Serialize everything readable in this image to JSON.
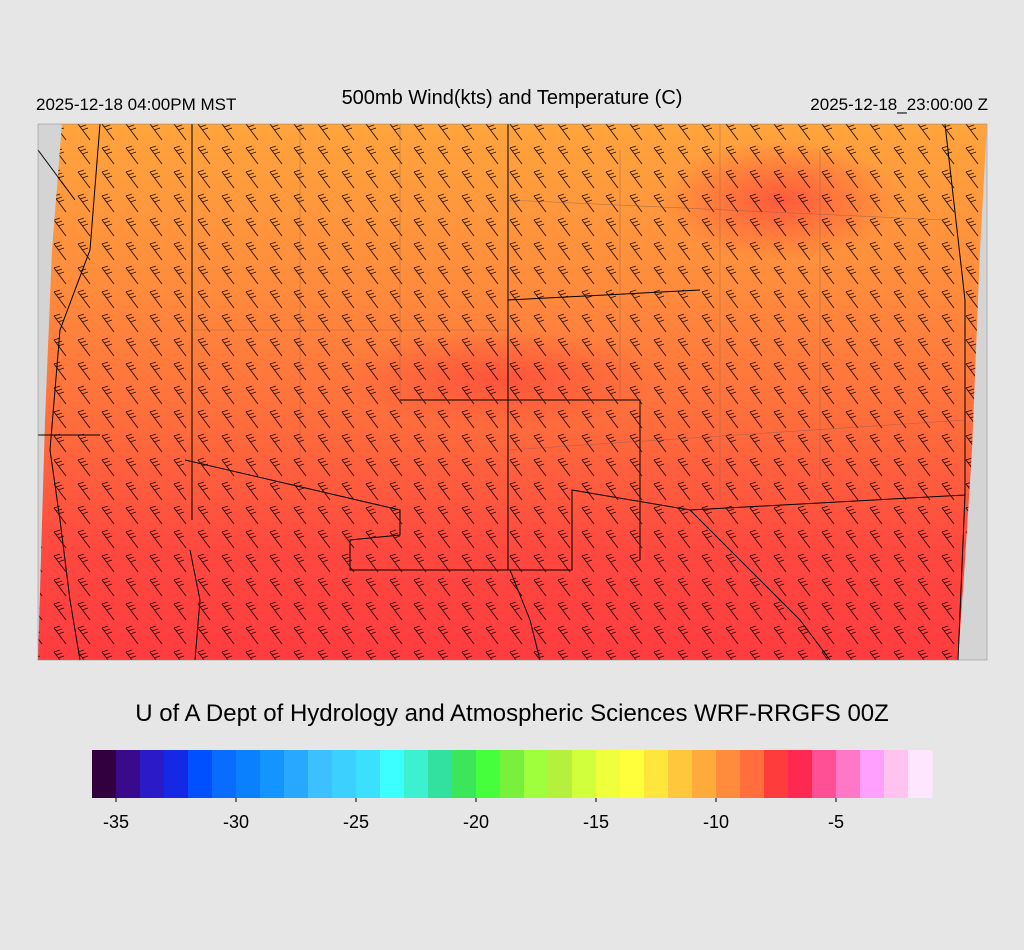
{
  "header": {
    "left": "2025-12-18 04:00PM MST",
    "title": "500mb Wind(kts) and Temperature (C)",
    "right": "2025-12-18_23:00:00 Z"
  },
  "credit": "U of A Dept of Hydrology and Atmospheric Sciences WRF-RRGFS 00Z",
  "colorbar": {
    "bins": [
      -36,
      -35,
      -34,
      -33,
      -32,
      -31,
      -30,
      -29,
      -28,
      -27,
      -26,
      -25,
      -24,
      -23,
      -22,
      -21,
      -20,
      -19,
      -18,
      -17,
      -16,
      -15,
      -14,
      -13,
      -12,
      -11,
      -10,
      -9,
      -8,
      -7,
      -6,
      -5,
      -4,
      -3,
      -2,
      -1
    ],
    "colors": [
      "#33003f",
      "#3a0a8c",
      "#2a1ac8",
      "#1428e6",
      "#0050ff",
      "#0a6cff",
      "#0a80ff",
      "#1494ff",
      "#28a8ff",
      "#3cc0ff",
      "#3cd0ff",
      "#3ce0ff",
      "#3cffff",
      "#3cf0d0",
      "#32e0a0",
      "#3ce65a",
      "#46ff3c",
      "#78f03c",
      "#a0ff3c",
      "#b4f03c",
      "#d2ff3c",
      "#f0ff3c",
      "#ffff3c",
      "#ffe63c",
      "#ffc83c",
      "#ffaa3c",
      "#ff8c3c",
      "#ff6e3c",
      "#ff3c3c",
      "#ff2850",
      "#ff5096",
      "#ff78c8",
      "#ffa0ff",
      "#ffc3f0",
      "#ffe6ff"
    ],
    "xlim": [
      -36,
      -1
    ],
    "ticks": [
      -35,
      -30,
      -25,
      -20,
      -15,
      -10,
      -5
    ]
  }
}
